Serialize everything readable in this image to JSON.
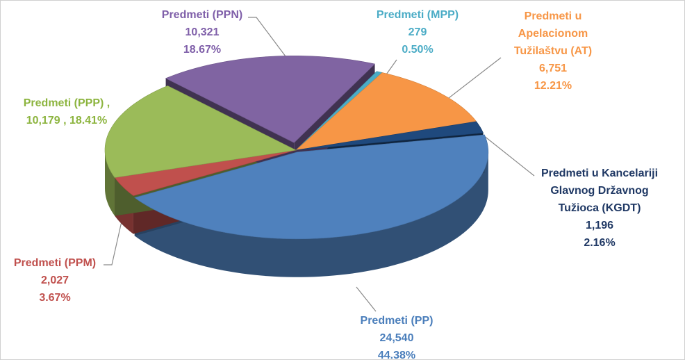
{
  "chart_data": {
    "type": "pie",
    "categories": [
      "Predmeti (MPP)",
      "Predmeti u Apelacionom Tužilaštvu (AT)",
      "Predmeti u Kancelariji Glavnog Državnog Tužioca (KGDT)",
      "Predmeti (PP)",
      "Predmeti (PPM)",
      "Predmeti (PPP) ,",
      "Predmeti (PPN)"
    ],
    "values": [
      279,
      6751,
      1196,
      24540,
      2027,
      10179,
      10321
    ],
    "value_labels": [
      "279",
      "6,751",
      "1,196",
      "24,540",
      "2,027",
      "10,179 ,",
      "10,321"
    ],
    "percents": [
      0.5,
      12.21,
      2.16,
      44.38,
      3.67,
      18.41,
      18.67
    ],
    "percent_labels": [
      "0.50%",
      "12.21%",
      "2.16%",
      "44.38%",
      "3.67%",
      "18.41%",
      "18.67%"
    ],
    "colors": [
      "#4bacc6",
      "#f79646",
      "#1f497d",
      "#4f81bd",
      "#c0504d",
      "#9bbb59",
      "#8064a2"
    ],
    "label_colors": [
      "#4bacc6",
      "#f79646",
      "#1f3864",
      "#4a7ebb",
      "#c0504d",
      "#8cb43e",
      "#7f5fa9"
    ]
  }
}
